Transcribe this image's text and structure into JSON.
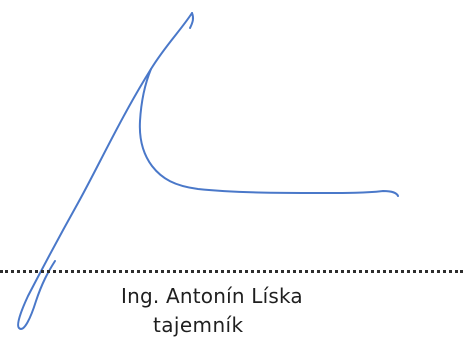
{
  "signatory": {
    "name": "Ing. Antonín Líska",
    "title": "tajemník"
  },
  "colors": {
    "ink": "#4a78c9",
    "text": "#1f1f1f",
    "rule": "#2d2d2d"
  },
  "icons": {
    "signature": "handwritten-signature"
  }
}
